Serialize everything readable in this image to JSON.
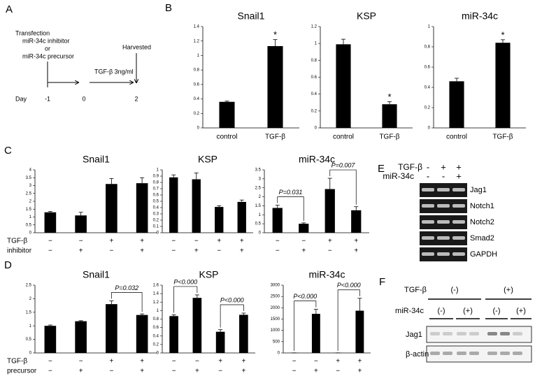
{
  "panel_labels": [
    "A",
    "B",
    "C",
    "D",
    "E",
    "F"
  ],
  "panel_a": {
    "transfection": "Transfection",
    "line1": "miR-34c inhibitor",
    "or": "or",
    "line2": "miR-34c precursor",
    "harvested": "Harvested",
    "treatment": "TGF-β 3ng/ml",
    "day": "Day",
    "days": [
      "-1",
      "0",
      "2"
    ]
  },
  "chart_data": [
    {
      "type": "bar",
      "title": "Snail1",
      "categories": [
        "control",
        "TGF-β"
      ],
      "values": [
        0.36,
        1.13
      ],
      "errors": [
        0.01,
        0.09
      ],
      "significance": [
        null,
        "*"
      ],
      "color": "#000000",
      "ylim": [
        0,
        1.4
      ],
      "yticks": [
        0,
        0.2,
        0.4,
        0.6,
        0.8,
        1,
        1.2,
        1.4
      ]
    },
    {
      "type": "bar",
      "title": "KSP",
      "categories": [
        "control",
        "TGF-β"
      ],
      "values": [
        0.99,
        0.28
      ],
      "errors": [
        0.06,
        0.03
      ],
      "significance": [
        null,
        "*"
      ],
      "color": "#000000",
      "ylim": [
        0,
        1.2
      ],
      "yticks": [
        0,
        0.2,
        0.4,
        0.6,
        0.8,
        1,
        1.2
      ]
    },
    {
      "type": "bar",
      "title": "miR-34c",
      "categories": [
        "control",
        "TGF-β"
      ],
      "values": [
        0.46,
        0.84
      ],
      "errors": [
        0.03,
        0.03
      ],
      "significance": [
        null,
        "*"
      ],
      "color": "#000000",
      "ylim": [
        0,
        1
      ],
      "yticks": [
        0,
        0.2,
        0.4,
        0.6,
        0.8,
        1
      ]
    },
    {
      "type": "bar",
      "title": "Snail1",
      "condition_rows": [
        {
          "label": "TGF-β",
          "marks": [
            "−",
            "−",
            "+",
            "+"
          ]
        },
        {
          "label": "inhibitor",
          "marks": [
            "−",
            "+",
            "−",
            "+"
          ]
        }
      ],
      "values": [
        1.3,
        1.1,
        3.1,
        3.15
      ],
      "errors": [
        0.05,
        0.2,
        0.35,
        0.35
      ],
      "color": "#000000",
      "ylim": [
        0,
        4
      ],
      "yticks": [
        0,
        0.5,
        1,
        1.5,
        2,
        2.5,
        3,
        3.5,
        4
      ]
    },
    {
      "type": "bar",
      "title": "KSP",
      "values": [
        0.88,
        0.85,
        0.41,
        0.49
      ],
      "errors": [
        0.04,
        0.1,
        0.02,
        0.03
      ],
      "color": "#000000",
      "ylim": [
        0,
        1
      ],
      "yticks": [
        0,
        0.1,
        0.2,
        0.3,
        0.4,
        0.5,
        0.6,
        0.7,
        0.8,
        0.9,
        1
      ]
    },
    {
      "type": "bar",
      "title": "miR-34c",
      "values": [
        1.38,
        0.5,
        2.43,
        1.25
      ],
      "errors": [
        0.15,
        0.05,
        0.6,
        0.2
      ],
      "color": "#000000",
      "ylim": [
        0,
        3.5
      ],
      "yticks": [
        0,
        0.5,
        1,
        1.5,
        2,
        2.5,
        3,
        3.5
      ],
      "comparisons": [
        {
          "label": "P=0.031",
          "between": [
            0,
            1
          ]
        },
        {
          "label": "P=0.007",
          "between": [
            2,
            3
          ]
        }
      ]
    },
    {
      "type": "bar",
      "title": "Snail1",
      "condition_rows": [
        {
          "label": "TGF-β",
          "marks": [
            "−",
            "−",
            "+",
            "+"
          ]
        },
        {
          "label": "precursor",
          "marks": [
            "−",
            "+",
            "−",
            "+"
          ]
        }
      ],
      "values": [
        1.0,
        1.17,
        1.8,
        1.4
      ],
      "errors": [
        0.03,
        0.02,
        0.12,
        0.04
      ],
      "color": "#000000",
      "ylim": [
        0,
        2.5
      ],
      "yticks": [
        0,
        0.5,
        1,
        1.5,
        2,
        2.5
      ],
      "comparisons": [
        {
          "label": "P=0.032",
          "between": [
            2,
            3
          ]
        }
      ]
    },
    {
      "type": "bar",
      "title": "KSP",
      "values": [
        0.87,
        1.3,
        0.5,
        0.9
      ],
      "errors": [
        0.03,
        0.07,
        0.05,
        0.04
      ],
      "color": "#000000",
      "ylim": [
        0,
        1.6
      ],
      "yticks": [
        0,
        0.2,
        0.4,
        0.6,
        0.8,
        1,
        1.2,
        1.4,
        1.6
      ],
      "comparisons": [
        {
          "label": "P<0.000",
          "between": [
            0,
            1
          ]
        },
        {
          "label": "P<0.000",
          "between": [
            2,
            3
          ]
        }
      ]
    },
    {
      "type": "bar",
      "title": "miR-34c",
      "values": [
        5,
        1730,
        5,
        1870
      ],
      "errors": [
        0,
        200,
        0,
        550
      ],
      "color": "#000000",
      "ylim": [
        0,
        3000
      ],
      "yticks": [
        0,
        500,
        1000,
        1500,
        2000,
        2500,
        3000
      ],
      "comparisons": [
        {
          "label": "P<0.000",
          "between": [
            0,
            1
          ]
        },
        {
          "label": "P<0.000",
          "between": [
            2,
            3
          ]
        }
      ]
    }
  ],
  "panel_e": {
    "header": [
      {
        "label": "TGF-β",
        "marks": [
          "-",
          "+",
          "+"
        ]
      },
      {
        "label": "miR-34c",
        "marks": [
          "-",
          "-",
          "+"
        ]
      }
    ],
    "bands": [
      "Jag1",
      "Notch1",
      "Notch2",
      "Smad2",
      "GAPDH"
    ]
  },
  "panel_f": {
    "header": [
      {
        "label": "TGF-β",
        "groups": [
          "(-)",
          "(+)"
        ]
      },
      {
        "label": "miR-34c",
        "groups": [
          "(-)",
          "(+)",
          "(-)",
          "(+)"
        ]
      }
    ],
    "bands": [
      "Jag1",
      "β-actin"
    ]
  }
}
